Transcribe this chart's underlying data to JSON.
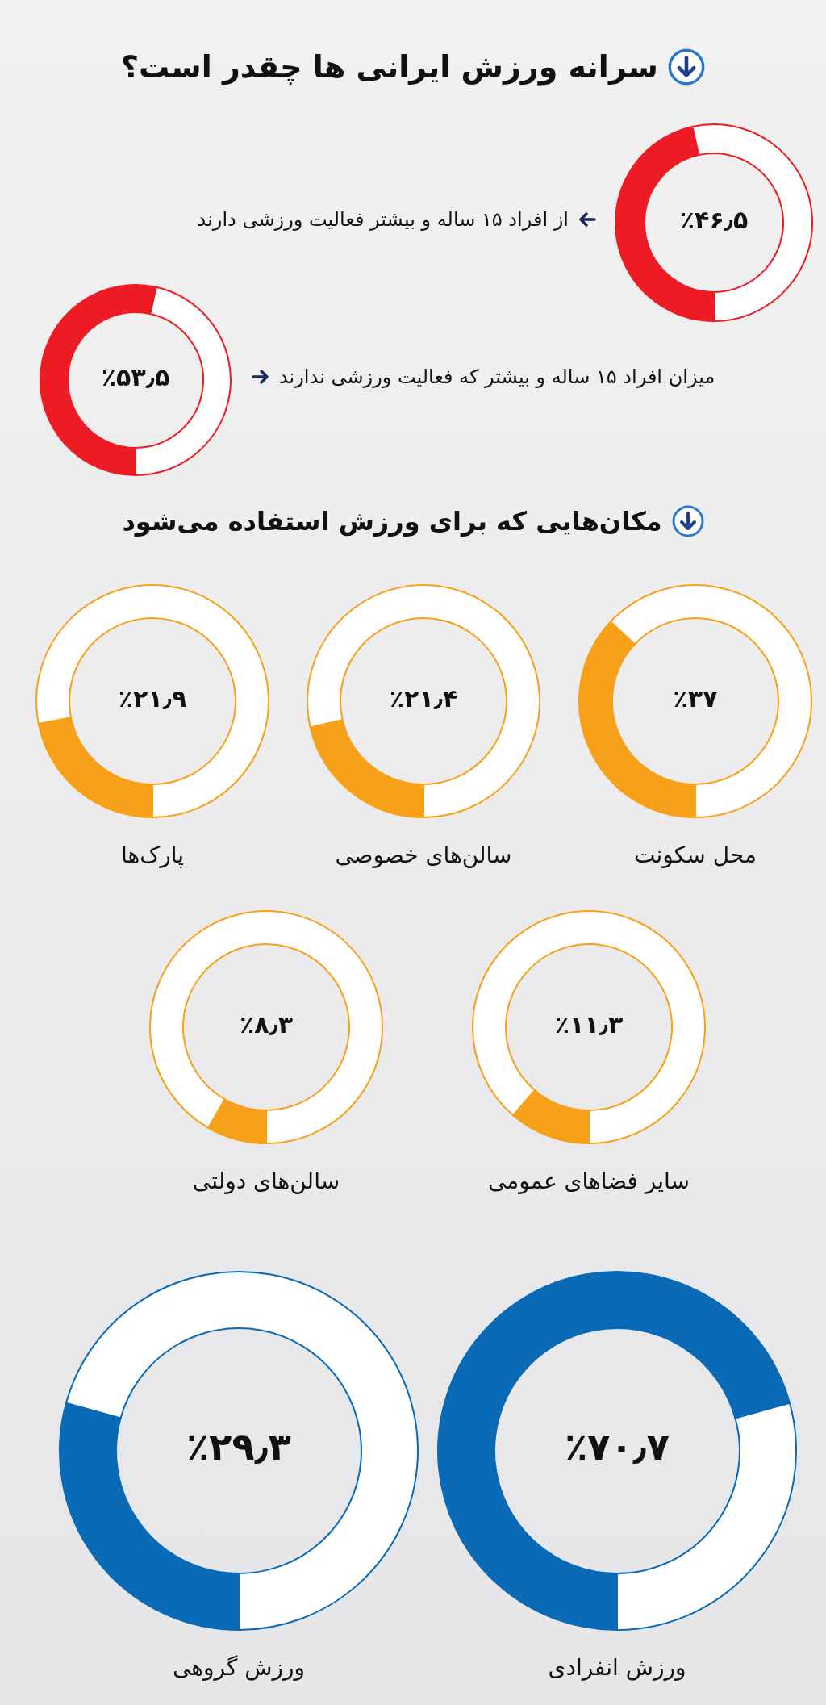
{
  "chart_data": [
    {
      "type": "donut",
      "title": "سرانه ورزش ایرانی ها چقدر است؟",
      "categories": [
        "از افراد ۱۵ ساله و بیشتر فعالیت ورزشی دارند",
        null
      ],
      "values": [
        46.5,
        53.5
      ],
      "colors": [
        "#ed1c24",
        "#ffffff"
      ],
      "annotations": [
        "٪۴۶٫۵"
      ]
    },
    {
      "type": "donut",
      "categories": [
        null,
        null
      ],
      "values": [
        53.5,
        46.5
      ],
      "colors": [
        "#ed1c24",
        "#ffffff"
      ],
      "annotations": [
        "٪۵۳٫۵",
        "میزان افراد ۱۵ ساله و بیشتر که فعالیت ورزشی ندارند"
      ]
    },
    {
      "type": "donut",
      "title": "مکان‌هایی که برای ورزش استفاده می‌شود",
      "categories": [
        "محل سکونت",
        null
      ],
      "values": [
        37,
        63
      ],
      "colors": [
        "#f7a11a",
        "#ffffff"
      ],
      "annotations": [
        "٪۳۷"
      ]
    },
    {
      "type": "donut",
      "categories": [
        "سالن‌های خصوصی",
        null
      ],
      "values": [
        21.4,
        78.6
      ],
      "colors": [
        "#f7a11a",
        "#ffffff"
      ],
      "annotations": [
        "٪۲۱٫۴"
      ]
    },
    {
      "type": "donut",
      "categories": [
        "پارک‌ها",
        null
      ],
      "values": [
        21.9,
        78.1
      ],
      "colors": [
        "#f7a11a",
        "#ffffff"
      ],
      "annotations": [
        "٪۲۱٫۹"
      ]
    },
    {
      "type": "donut",
      "categories": [
        "سایر فضاهای عمومی",
        null
      ],
      "values": [
        11.3,
        88.7
      ],
      "colors": [
        "#f7a11a",
        "#ffffff"
      ],
      "annotations": [
        "٪۱۱٫۳"
      ]
    },
    {
      "type": "donut",
      "categories": [
        "سالن‌های دولتی",
        null
      ],
      "values": [
        8.3,
        91.7
      ],
      "colors": [
        "#f7a11a",
        "#ffffff"
      ],
      "annotations": [
        "٪۸٫۳"
      ]
    },
    {
      "type": "donut",
      "categories": [
        "ورزش انفرادی",
        null
      ],
      "values": [
        70.7,
        29.3
      ],
      "colors": [
        "#0a6ab6",
        "#ffffff"
      ],
      "annotations": [
        "٪۷۰٫۷"
      ]
    },
    {
      "type": "donut",
      "categories": [
        "ورزش گروهی",
        null
      ],
      "values": [
        29.3,
        70.7
      ],
      "colors": [
        "#0a6ab6",
        "#ffffff"
      ],
      "annotations": [
        "٪۲۹٫۳"
      ]
    }
  ]
}
